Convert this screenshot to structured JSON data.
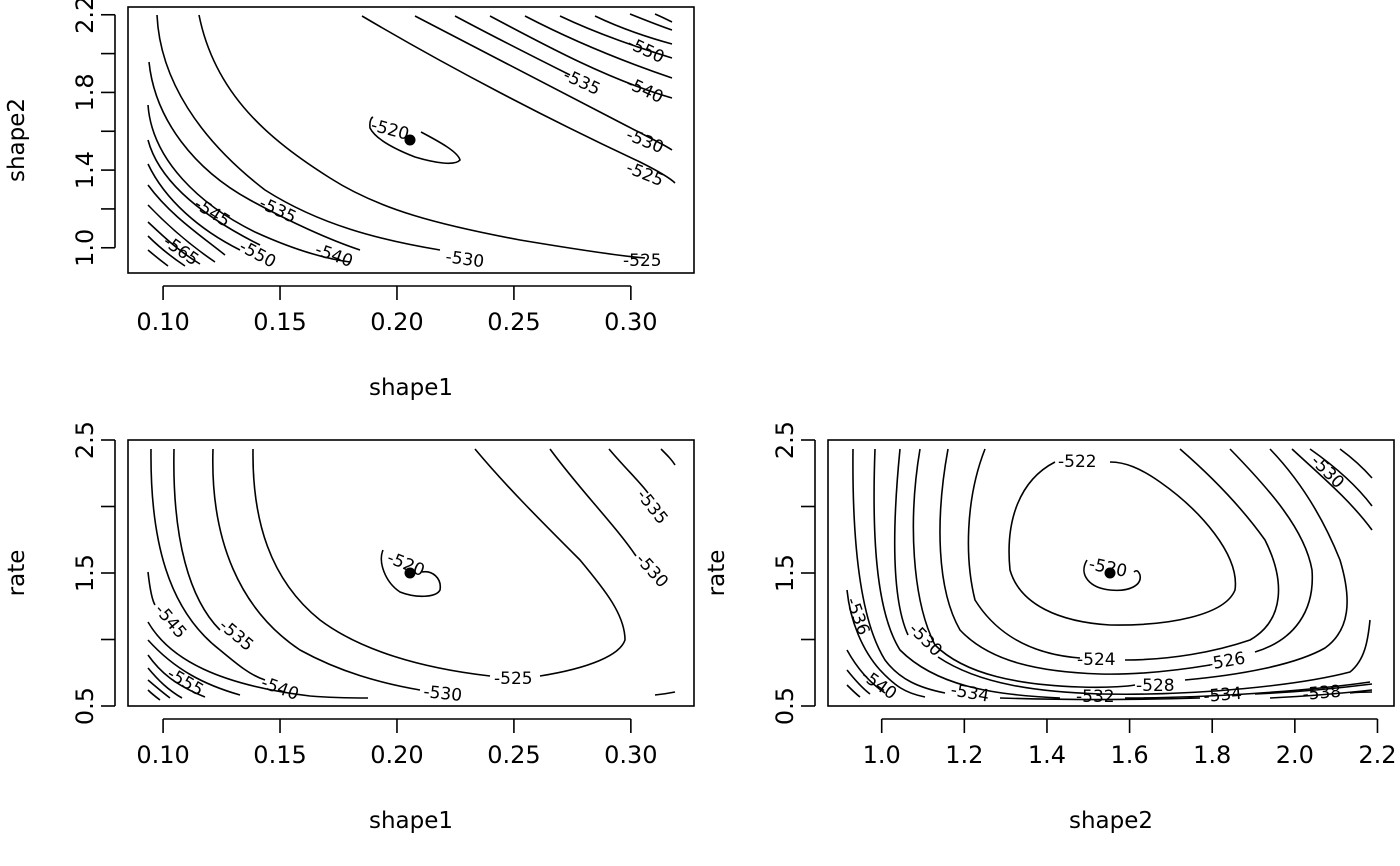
{
  "chart_data": [
    {
      "type": "contour",
      "panel": "shape1-shape2",
      "xlabel": "shape1",
      "ylabel": "shape2",
      "xlim": [
        0.085,
        0.327
      ],
      "ylim": [
        0.87,
        2.24
      ],
      "x_ticks": [
        "0.10",
        "0.15",
        "0.20",
        "0.25",
        "0.30"
      ],
      "y_ticks": [
        "1.0",
        "1.4",
        "1.8",
        "2.2"
      ],
      "optimum": {
        "shape1": 0.206,
        "shape2": 1.545
      },
      "contour_labels": [
        "-520",
        "-525",
        "-525",
        "-530",
        "-530",
        "-535",
        "-535",
        "-540",
        "-540",
        "-545",
        "-550",
        "-550",
        "-565"
      ],
      "contour_levels": [
        -520,
        -525,
        -530,
        -535,
        -540,
        -545,
        -550,
        -555,
        -560,
        -565,
        -570,
        -575
      ]
    },
    {
      "type": "contour",
      "panel": "shape1-rate",
      "xlabel": "shape1",
      "ylabel": "rate",
      "xlim": [
        0.085,
        0.327
      ],
      "ylim": [
        0.5,
        2.5
      ],
      "x_ticks": [
        "0.10",
        "0.15",
        "0.20",
        "0.25",
        "0.30"
      ],
      "y_ticks": [
        "0.5",
        "1.5",
        "2.5"
      ],
      "optimum": {
        "shape1": 0.206,
        "rate": 1.5
      },
      "contour_labels": [
        "-520",
        "-525",
        "-530",
        "-530",
        "-535",
        "-535",
        "-540",
        "-545",
        "-555"
      ],
      "contour_levels": [
        -520,
        -525,
        -530,
        -535,
        -540,
        -545,
        -550,
        -555,
        -560
      ]
    },
    {
      "type": "contour",
      "panel": "shape2-rate",
      "xlabel": "shape2",
      "ylabel": "rate",
      "xlim": [
        0.87,
        2.24
      ],
      "ylim": [
        0.5,
        2.5
      ],
      "x_ticks": [
        "1.0",
        "1.2",
        "1.4",
        "1.6",
        "1.8",
        "2.0",
        "2.2"
      ],
      "y_ticks": [
        "0.5",
        "1.5",
        "2.5"
      ],
      "optimum": {
        "shape2": 1.545,
        "rate": 1.5
      },
      "contour_labels": [
        "-520",
        "-522",
        "-524",
        "-526",
        "-528",
        "-530",
        "-530",
        "-532",
        "-534",
        "-534",
        "-536",
        "-538",
        "-540"
      ],
      "contour_levels": [
        -520,
        -522,
        -524,
        -526,
        -528,
        -530,
        -532,
        -534,
        -536,
        -538,
        -540
      ]
    }
  ]
}
